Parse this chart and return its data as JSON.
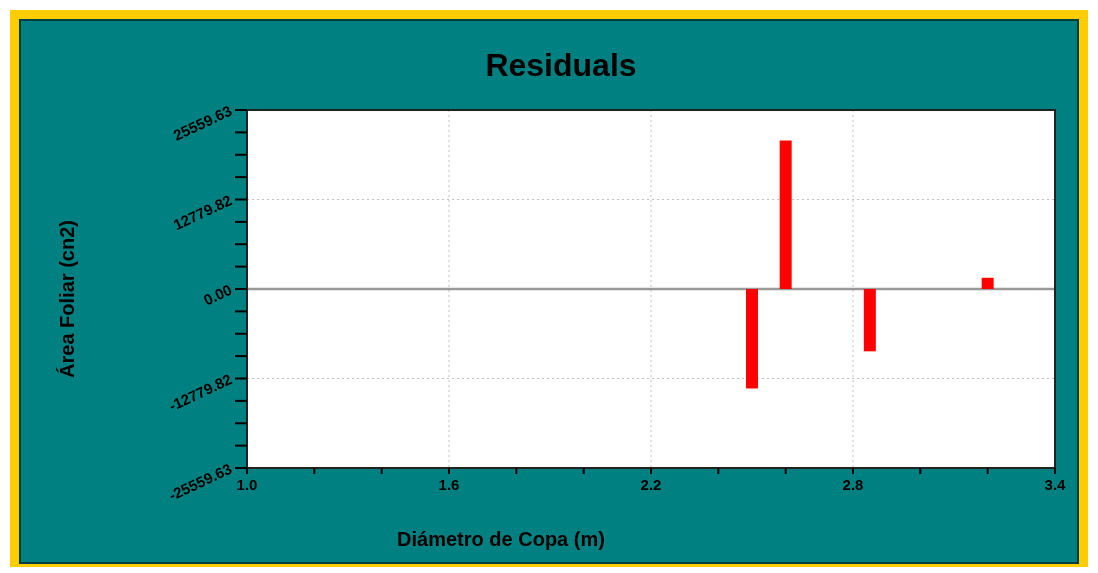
{
  "chart_data": {
    "type": "bar",
    "title": "Residuals",
    "xlabel": "Diámetro de Copa (m)",
    "ylabel": "Área Foliar (cn2)",
    "x": [
      2.5,
      2.6,
      2.85,
      3.2
    ],
    "series": [
      {
        "color": "#ff0000",
        "values": [
          -14200,
          21200,
          -8900,
          1600
        ]
      }
    ],
    "xlim": [
      1.0,
      3.4
    ],
    "xticks": [
      {
        "value": 1.0,
        "label": "1.0"
      },
      {
        "value": 1.2,
        "label": null
      },
      {
        "value": 1.4,
        "label": null
      },
      {
        "value": 1.6,
        "label": "1.6"
      },
      {
        "value": 1.8,
        "label": null
      },
      {
        "value": 2.0,
        "label": null
      },
      {
        "value": 2.2,
        "label": "2.2"
      },
      {
        "value": 2.4,
        "label": null
      },
      {
        "value": 2.6,
        "label": null
      },
      {
        "value": 2.8,
        "label": "2.8"
      },
      {
        "value": 3.0,
        "label": null
      },
      {
        "value": 3.2,
        "label": null
      },
      {
        "value": 3.4,
        "label": "3.4"
      }
    ],
    "ylim": [
      -25559.63,
      25559.63
    ],
    "yticks": [
      {
        "value": -25559.63,
        "label": "-25559.63"
      },
      {
        "value": -22364.68,
        "label": null
      },
      {
        "value": -19169.72,
        "label": null
      },
      {
        "value": -15974.77,
        "label": null
      },
      {
        "value": -12779.82,
        "label": "-12779.82"
      },
      {
        "value": -9584.86,
        "label": null
      },
      {
        "value": -6389.91,
        "label": null
      },
      {
        "value": -3194.95,
        "label": null
      },
      {
        "value": 0,
        "label": "0.00"
      },
      {
        "value": 3194.95,
        "label": null
      },
      {
        "value": 6389.91,
        "label": null
      },
      {
        "value": 9584.86,
        "label": null
      },
      {
        "value": 12779.82,
        "label": "12779.82"
      },
      {
        "value": 15974.77,
        "label": null
      },
      {
        "value": 19169.72,
        "label": null
      },
      {
        "value": 22364.68,
        "label": null
      },
      {
        "value": 25559.63,
        "label": "25559.63"
      }
    ],
    "grid": true
  }
}
